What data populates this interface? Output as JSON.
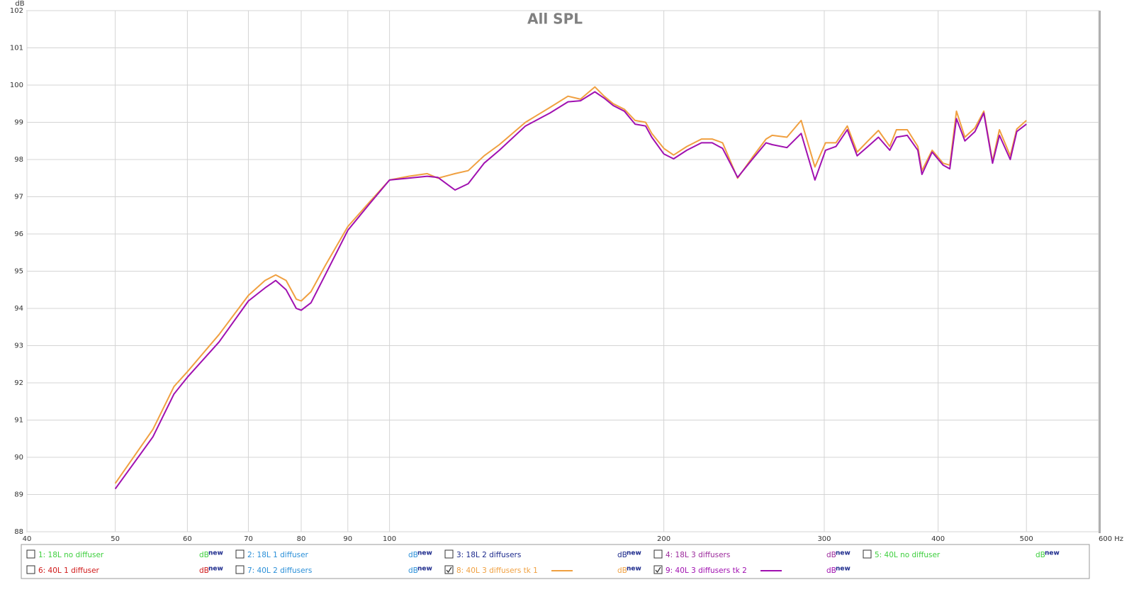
{
  "chart_data": {
    "type": "line",
    "title": "All SPL",
    "y_label": "dB",
    "log_x": true,
    "grid": true,
    "xlim": [
      40,
      600
    ],
    "xticks": [
      40,
      50,
      60,
      70,
      80,
      90,
      100,
      200,
      300,
      400,
      500,
      {
        "value": 600,
        "label": "600 Hz"
      }
    ],
    "ylim": [
      88,
      102
    ],
    "yticks": [
      88,
      89,
      90,
      91,
      92,
      93,
      94,
      95,
      96,
      97,
      98,
      99,
      100,
      101,
      102
    ],
    "x": [
      50,
      55,
      58,
      60,
      65,
      70,
      73,
      75,
      77,
      79,
      80,
      82,
      85,
      90,
      95,
      100,
      105,
      110,
      113,
      118,
      122,
      127,
      132,
      141,
      150,
      157,
      162,
      168,
      172,
      176,
      181,
      186,
      191,
      194,
      200,
      205,
      212,
      220,
      226,
      232,
      241,
      250,
      259,
      263,
      273,
      283,
      293,
      301,
      309,
      318,
      326,
      335,
      344,
      354,
      360,
      370,
      380,
      384,
      394,
      405,
      412,
      419,
      428,
      439,
      449,
      459,
      467,
      480,
      488,
      500
    ],
    "series": [
      {
        "name": "1: 18L no diffuser",
        "color": "#3ecf3e",
        "checked": false,
        "unit": "dB",
        "tag": "new"
      },
      {
        "name": "2: 18L 1 diffuser",
        "color": "#2a8fd8",
        "checked": false,
        "unit": "dB",
        "tag": "new"
      },
      {
        "name": "3: 18L 2 diffusers",
        "color": "#1c2a8c",
        "checked": false,
        "unit": "dB",
        "tag": "new"
      },
      {
        "name": "4: 18L 3 diffusers",
        "color": "#9c2a9c",
        "checked": false,
        "unit": "dB",
        "tag": "new"
      },
      {
        "name": "5: 40L no diffuser",
        "color": "#3ecf3e",
        "checked": false,
        "unit": "dB",
        "tag": "new"
      },
      {
        "name": "6: 40L 1 diffuser",
        "color": "#d01818",
        "checked": false,
        "unit": "dB",
        "tag": "new"
      },
      {
        "name": "7: 40L 2 diffusers",
        "color": "#2a8fd8",
        "checked": false,
        "unit": "dB",
        "tag": "new"
      },
      {
        "name": "8: 40L 3 diffusers tk 1",
        "color": "#f0a040",
        "checked": true,
        "unit": "dB",
        "tag": "new",
        "values": [
          89.3,
          90.75,
          91.9,
          92.3,
          93.3,
          94.35,
          94.75,
          94.9,
          94.75,
          94.25,
          94.2,
          94.45,
          95.15,
          96.2,
          96.85,
          97.45,
          97.55,
          97.62,
          97.5,
          97.62,
          97.7,
          98.1,
          98.4,
          99.0,
          99.4,
          99.7,
          99.62,
          99.95,
          99.7,
          99.5,
          99.35,
          99.05,
          99.0,
          98.7,
          98.3,
          98.12,
          98.35,
          98.55,
          98.55,
          98.45,
          97.5,
          98.05,
          98.55,
          98.65,
          98.6,
          99.05,
          97.8,
          98.45,
          98.45,
          98.9,
          98.2,
          98.5,
          98.78,
          98.35,
          98.8,
          98.8,
          98.35,
          97.7,
          98.25,
          97.9,
          97.85,
          99.3,
          98.6,
          98.85,
          99.3,
          97.95,
          98.8,
          98.1,
          98.82,
          99.05
        ]
      },
      {
        "name": "9: 40L 3 diffusers tk 2",
        "color": "#a010b0",
        "checked": true,
        "unit": "dB",
        "tag": "new",
        "values": [
          89.15,
          90.55,
          91.7,
          92.15,
          93.1,
          94.2,
          94.55,
          94.75,
          94.5,
          94.0,
          93.95,
          94.15,
          94.9,
          96.1,
          96.8,
          97.45,
          97.5,
          97.55,
          97.52,
          97.18,
          97.35,
          97.9,
          98.25,
          98.9,
          99.25,
          99.55,
          99.58,
          99.82,
          99.65,
          99.45,
          99.3,
          98.95,
          98.9,
          98.6,
          98.15,
          98.02,
          98.25,
          98.45,
          98.45,
          98.3,
          97.52,
          98.0,
          98.45,
          98.4,
          98.32,
          98.7,
          97.45,
          98.25,
          98.35,
          98.8,
          98.1,
          98.35,
          98.6,
          98.25,
          98.6,
          98.65,
          98.25,
          97.6,
          98.2,
          97.85,
          97.75,
          99.1,
          98.5,
          98.75,
          99.25,
          97.9,
          98.65,
          98.0,
          98.75,
          98.95
        ]
      }
    ]
  }
}
